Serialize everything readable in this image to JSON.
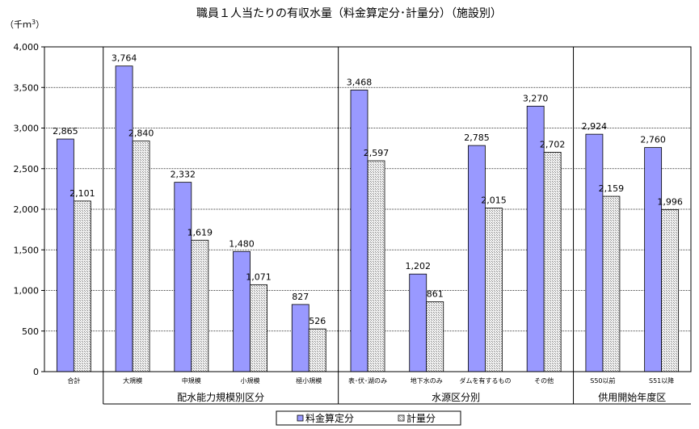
{
  "chart_data": {
    "type": "bar",
    "title": "職員１人当たりの有収水量（料金算定分･計量分）（施設別）",
    "unit": "（千ｍ",
    "unit_sup": "3",
    "unit_close": "）",
    "ylim": [
      0,
      4000
    ],
    "yticks": [
      0,
      500,
      1000,
      1500,
      2000,
      2500,
      3000,
      3500,
      4000
    ],
    "ytick_labels": [
      "0",
      "500",
      "1,000",
      "1,500",
      "2,000",
      "2,500",
      "3,000",
      "3,500",
      "4,000"
    ],
    "grid": true,
    "categories": [
      "合計",
      "大規模",
      "中規模",
      "小規模",
      "極小規模",
      "表･伏･湖のみ",
      "地下水のみ",
      "ダムを有するもの",
      "その他",
      "S50以前",
      "S51以降"
    ],
    "series": [
      {
        "name": "料金算定分",
        "color": "#9999ff",
        "values": [
          2865,
          3764,
          2332,
          1480,
          827,
          3468,
          1202,
          2785,
          3270,
          2924,
          2760
        ],
        "labels": [
          "2,865",
          "3,764",
          "2,332",
          "1,480",
          "827",
          "3,468",
          "1,202",
          "2,785",
          "3,270",
          "2,924",
          "2,760"
        ]
      },
      {
        "name": "計量分",
        "color": "#d8d8d8",
        "values": [
          2101,
          2840,
          1619,
          1071,
          526,
          2597,
          861,
          2015,
          2702,
          2159,
          1996
        ],
        "labels": [
          "2,101",
          "2,840",
          "1,619",
          "1,071",
          "526",
          "2,597",
          "861",
          "2,015",
          "2,702",
          "2,159",
          "1,996"
        ]
      }
    ],
    "groups": [
      {
        "label": "配水能力規模別区分",
        "from": 1,
        "to": 4
      },
      {
        "label": "水源区分別",
        "from": 5,
        "to": 8
      },
      {
        "label": "供用開始年度区",
        "from": 9,
        "to": 10
      }
    ],
    "legend_position": "bottom"
  }
}
